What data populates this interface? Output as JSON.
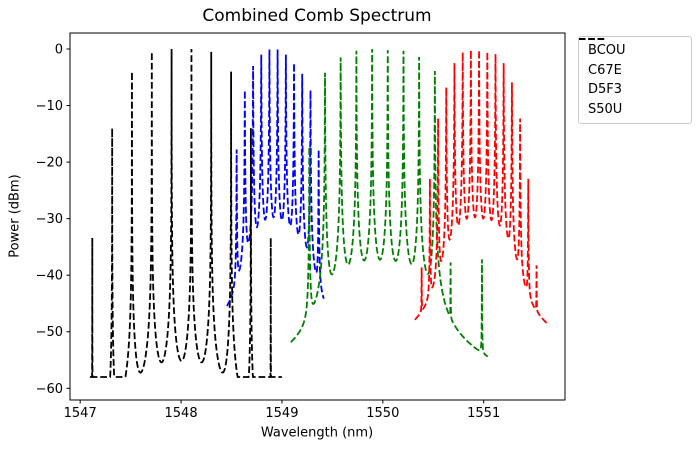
{
  "chart_data": {
    "type": "line",
    "title": "Combined Comb Spectrum",
    "xlabel": "Wavelength (nm)",
    "ylabel": "Power (dBm)",
    "xlim": [
      1546.899,
      1551.806
    ],
    "ylim": [
      -62.07,
      2.83
    ],
    "grid": false,
    "x_ticks": [
      {
        "value": 1547,
        "label": "1547"
      },
      {
        "value": 1548,
        "label": "1548"
      },
      {
        "value": 1549,
        "label": "1549"
      },
      {
        "value": 1550,
        "label": "1550"
      },
      {
        "value": 1551,
        "label": "1551"
      }
    ],
    "y_ticks": [
      {
        "value": 0,
        "label": "0"
      },
      {
        "value": -10,
        "label": "−10"
      },
      {
        "value": -20,
        "label": "−20"
      },
      {
        "value": -30,
        "label": "−30"
      },
      {
        "value": -40,
        "label": "−40"
      },
      {
        "value": -50,
        "label": "−50"
      },
      {
        "value": -60,
        "label": "−60"
      }
    ],
    "legend": {
      "position": "upper-right-outside-axes",
      "border_color": "#cccccc",
      "background": "#ffffff"
    },
    "series": [
      {
        "label": "BCOU",
        "color": "#0000ff",
        "linestyle": "dashed",
        "line_width": 1.8,
        "comb_spacing_nm": 0.0813,
        "gamma_nm": 0.00089,
        "floor_dbm": -58.6,
        "domain_nm": [
          1548.455,
          1549.415
        ],
        "teeth": [
          [
            1548.551,
            -17.8
          ],
          [
            1548.632,
            -7.3
          ],
          [
            1548.714,
            -3.0
          ],
          [
            1548.795,
            -1.0
          ],
          [
            1548.876,
            -0.1
          ],
          [
            1548.957,
            -0.1
          ],
          [
            1549.039,
            -1.0
          ],
          [
            1549.12,
            -2.5
          ],
          [
            1549.201,
            -4.4
          ],
          [
            1549.283,
            -7.3
          ],
          [
            1549.364,
            -17.8
          ]
        ]
      },
      {
        "label": "C67E",
        "color": "#008000",
        "linestyle": "dashed",
        "line_width": 1.8,
        "comb_spacing_nm": 0.1556,
        "gamma_nm": 0.00071,
        "floor_dbm": -58.2,
        "domain_nm": [
          1549.088,
          1551.04
        ],
        "teeth": [
          [
            1549.271,
            -17.3
          ],
          [
            1549.427,
            -4.2
          ],
          [
            1549.582,
            -1.5
          ],
          [
            1549.738,
            -0.3
          ],
          [
            1549.894,
            0.0
          ],
          [
            1550.049,
            -0.2
          ],
          [
            1550.205,
            -0.3
          ],
          [
            1550.36,
            -1.4
          ],
          [
            1550.516,
            -3.9
          ],
          [
            1550.672,
            -38.2
          ],
          [
            1550.983,
            -37.3
          ]
        ]
      },
      {
        "label": "D5F3",
        "color": "#ff0000",
        "linestyle": "dashed",
        "line_width": 1.8,
        "comb_spacing_nm": 0.0816,
        "gamma_nm": 0.00089,
        "floor_dbm": -59.0,
        "domain_nm": [
          1550.318,
          1551.635
        ],
        "teeth": [
          [
            1550.385,
            -39.4
          ],
          [
            1550.467,
            -23.0
          ],
          [
            1550.548,
            -12.3
          ],
          [
            1550.629,
            -6.8
          ],
          [
            1550.71,
            -2.5
          ],
          [
            1550.792,
            -0.6
          ],
          [
            1550.873,
            -0.2
          ],
          [
            1550.954,
            -0.2
          ],
          [
            1551.036,
            -0.5
          ],
          [
            1551.117,
            -0.9
          ],
          [
            1551.198,
            -2.5
          ],
          [
            1551.28,
            -5.9
          ],
          [
            1551.361,
            -12.3
          ],
          [
            1551.442,
            -23.0
          ],
          [
            1551.524,
            -39.0
          ]
        ]
      },
      {
        "label": "S50U",
        "color": "#000000",
        "linestyle": "dashed",
        "line_width": 1.8,
        "comb_spacing_nm": 0.1966,
        "gamma_nm": 0.000115,
        "floor_dbm": -58.0,
        "domain_nm": [
          1547.097,
          1549.0
        ],
        "teeth": [
          [
            1547.12,
            -33.4
          ],
          [
            1547.317,
            -14.0
          ],
          [
            1547.513,
            -4.0
          ],
          [
            1547.71,
            -0.5
          ],
          [
            1547.906,
            0.0
          ],
          [
            1548.103,
            0.0
          ],
          [
            1548.299,
            -0.5
          ],
          [
            1548.496,
            -4.0
          ],
          [
            1548.692,
            -14.0
          ],
          [
            1548.889,
            -33.4
          ]
        ]
      }
    ]
  }
}
